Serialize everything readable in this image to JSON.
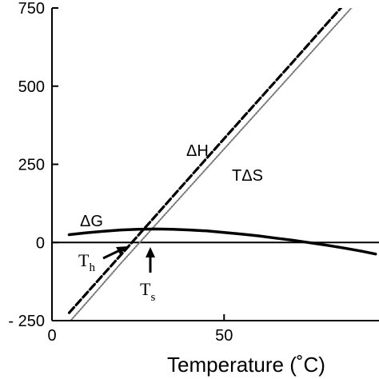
{
  "chart_data": {
    "type": "line",
    "xlabel": "Temperature (˚C)",
    "xlim": [
      0,
      95
    ],
    "ylim": [
      -250,
      750
    ],
    "xticks": [
      0,
      50
    ],
    "yticks": [
      -250,
      0,
      250,
      500,
      750
    ],
    "ytick_labels": [
      "- 250",
      "0",
      "250",
      "500",
      "750"
    ],
    "zero_line": true,
    "series": [
      {
        "name": "ΔH",
        "style": "dashed",
        "x": [
          5,
          10,
          20,
          30,
          40,
          50,
          60,
          70,
          80,
          90,
          94
        ],
        "y": [
          -225,
          -163,
          -40,
          84,
          208,
          332,
          455,
          578,
          702,
          825,
          875
        ]
      },
      {
        "name": "TΔS",
        "style": "dotted",
        "x": [
          5,
          10,
          20,
          30,
          40,
          50,
          60,
          70,
          80,
          90,
          94
        ],
        "y": [
          -255,
          -193,
          -67,
          55,
          177,
          299,
          421,
          543,
          665,
          787,
          836
        ]
      },
      {
        "name": "ΔG",
        "style": "solid",
        "x": [
          5,
          10,
          15,
          20,
          25,
          30,
          35,
          40,
          45,
          50,
          55,
          60,
          65,
          70,
          75,
          80,
          85,
          90,
          94
        ],
        "y": [
          25,
          31,
          36,
          40,
          42,
          43,
          42,
          40,
          37,
          32,
          27,
          21,
          14,
          7,
          -1,
          -9,
          -18,
          -28,
          -37
        ]
      }
    ],
    "annotations": [
      {
        "id": "th",
        "label": "T",
        "subscript": "h",
        "x": 27,
        "y": 0,
        "arrow": "pointing-right"
      },
      {
        "id": "ts",
        "label": "T",
        "subscript": "s",
        "x": 31,
        "y": 0,
        "arrow": "pointing-up"
      }
    ]
  }
}
